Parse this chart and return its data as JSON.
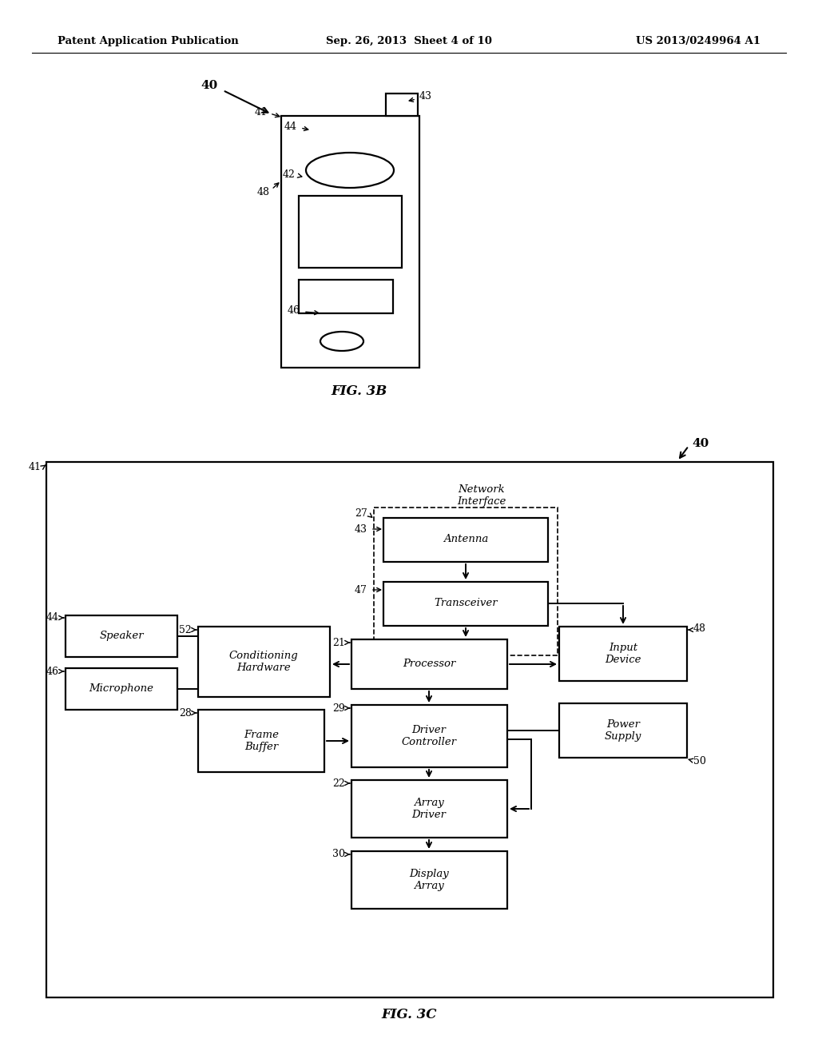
{
  "bg_color": "#ffffff",
  "header_left": "Patent Application Publication",
  "header_center": "Sep. 26, 2013  Sheet 4 of 10",
  "header_right": "US 2013/0249964 A1",
  "fig3b_label": "FIG. 3B",
  "fig3c_label": "FIG. 3C"
}
